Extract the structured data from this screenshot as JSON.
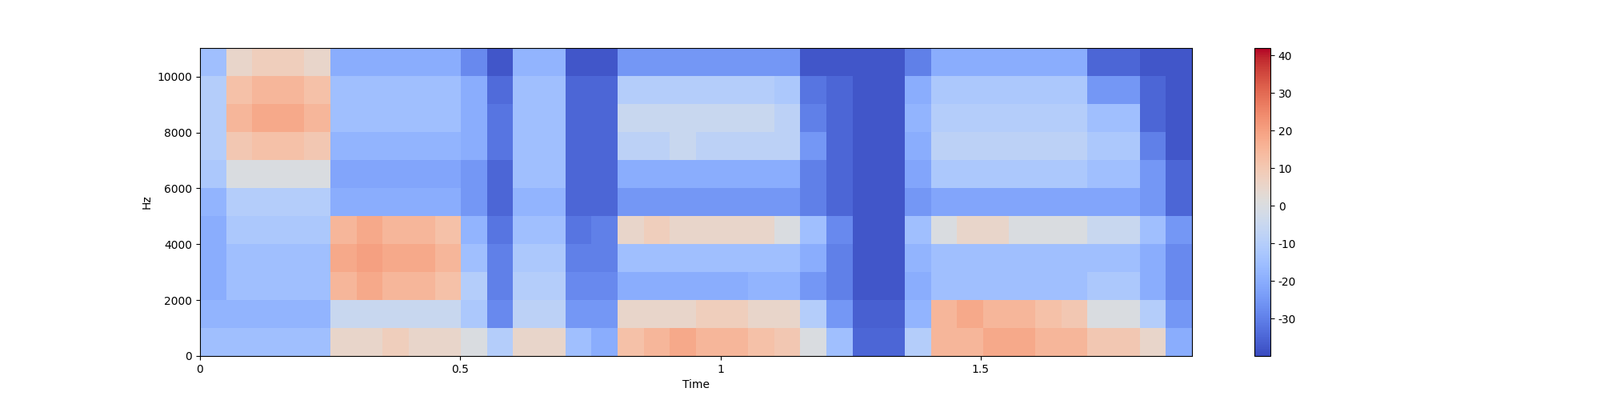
{
  "chart_data": {
    "type": "heatmap",
    "xlabel": "Time",
    "ylabel": "Hz",
    "xlim": [
      0,
      1.906
    ],
    "ylim": [
      0,
      11025
    ],
    "xticks": [
      0,
      0.5,
      1,
      1.5
    ],
    "yticks": [
      0,
      2000,
      4000,
      6000,
      8000,
      10000
    ],
    "color": "coolwarm",
    "colorbar": {
      "range": [
        -40,
        42
      ],
      "ticks": [
        -30,
        -20,
        -10,
        0,
        10,
        20,
        30,
        40
      ]
    },
    "cells": [
      [
        -15,
        -15,
        -15,
        -15,
        -15,
        5,
        5,
        8,
        5,
        5,
        0,
        -10,
        5,
        5,
        -15,
        -20,
        12,
        15,
        18,
        15,
        15,
        12,
        10,
        0,
        -15,
        -35,
        -35,
        -10,
        15,
        15,
        18,
        18,
        15,
        15,
        10,
        10,
        5,
        -20
      ],
      [
        -18,
        -18,
        -18,
        -18,
        -18,
        -5,
        -5,
        -5,
        -5,
        -5,
        -12,
        -28,
        -8,
        -8,
        -25,
        -25,
        5,
        5,
        5,
        8,
        8,
        5,
        5,
        -10,
        -25,
        -36,
        -36,
        -18,
        15,
        18,
        15,
        15,
        12,
        10,
        0,
        0,
        -10,
        -25
      ],
      [
        -20,
        -15,
        -15,
        -15,
        -15,
        15,
        18,
        15,
        15,
        12,
        -10,
        -30,
        -10,
        -10,
        -28,
        -28,
        -20,
        -20,
        -20,
        -20,
        -20,
        -18,
        -18,
        -25,
        -30,
        -38,
        -38,
        -20,
        -15,
        -15,
        -15,
        -15,
        -15,
        -15,
        -12,
        -12,
        -20,
        -28
      ],
      [
        -20,
        -15,
        -15,
        -15,
        -15,
        18,
        20,
        18,
        18,
        15,
        -15,
        -30,
        -12,
        -12,
        -30,
        -30,
        -15,
        -15,
        -15,
        -15,
        -15,
        -15,
        -15,
        -20,
        -30,
        -38,
        -38,
        -18,
        -15,
        -15,
        -15,
        -15,
        -15,
        -15,
        -15,
        -15,
        -20,
        -28
      ],
      [
        -20,
        -12,
        -12,
        -12,
        -12,
        15,
        18,
        15,
        15,
        12,
        -18,
        -32,
        -15,
        -15,
        -32,
        -30,
        5,
        8,
        5,
        5,
        5,
        5,
        0,
        -15,
        -28,
        -38,
        -38,
        -15,
        0,
        5,
        5,
        0,
        0,
        0,
        -5,
        -5,
        -15,
        -25
      ],
      [
        -18,
        -10,
        -10,
        -10,
        -10,
        -20,
        -20,
        -20,
        -20,
        -20,
        -25,
        -35,
        -18,
        -18,
        -35,
        -35,
        -25,
        -25,
        -25,
        -25,
        -25,
        -25,
        -25,
        -30,
        -35,
        -38,
        -38,
        -25,
        -22,
        -22,
        -22,
        -22,
        -22,
        -22,
        -22,
        -22,
        -25,
        -35
      ],
      [
        -12,
        0,
        0,
        0,
        0,
        -22,
        -22,
        -22,
        -22,
        -22,
        -25,
        -35,
        -15,
        -15,
        -35,
        -35,
        -20,
        -20,
        -20,
        -20,
        -20,
        -20,
        -20,
        -30,
        -35,
        -38,
        -38,
        -22,
        -12,
        -12,
        -12,
        -12,
        -12,
        -12,
        -15,
        -15,
        -25,
        -35
      ],
      [
        -10,
        10,
        12,
        12,
        10,
        -18,
        -18,
        -18,
        -18,
        -18,
        -20,
        -32,
        -15,
        -15,
        -35,
        -35,
        -8,
        -8,
        -5,
        -8,
        -8,
        -8,
        -8,
        -25,
        -35,
        -38,
        -38,
        -20,
        -8,
        -8,
        -8,
        -8,
        -8,
        -8,
        -12,
        -12,
        -30,
        -38
      ],
      [
        -10,
        15,
        18,
        18,
        15,
        -15,
        -15,
        -15,
        -15,
        -15,
        -20,
        -32,
        -15,
        -15,
        -35,
        -35,
        -5,
        -5,
        -5,
        -5,
        -5,
        -5,
        -8,
        -30,
        -35,
        -38,
        -38,
        -18,
        -10,
        -10,
        -10,
        -10,
        -10,
        -10,
        -15,
        -15,
        -35,
        -38
      ],
      [
        -10,
        12,
        15,
        15,
        12,
        -15,
        -15,
        -15,
        -15,
        -15,
        -20,
        -34,
        -15,
        -15,
        -35,
        -35,
        -10,
        -10,
        -10,
        -10,
        -10,
        -10,
        -12,
        -32,
        -35,
        -38,
        -38,
        -20,
        -12,
        -12,
        -12,
        -12,
        -12,
        -12,
        -25,
        -25,
        -35,
        -38
      ],
      [
        -15,
        5,
        8,
        8,
        5,
        -20,
        -20,
        -20,
        -20,
        -20,
        -28,
        -38,
        -18,
        -18,
        -38,
        -38,
        -25,
        -25,
        -25,
        -25,
        -25,
        -25,
        -25,
        -38,
        -38,
        -38,
        -38,
        -30,
        -20,
        -20,
        -20,
        -20,
        -20,
        -20,
        -35,
        -35,
        -38,
        -38
      ]
    ]
  }
}
